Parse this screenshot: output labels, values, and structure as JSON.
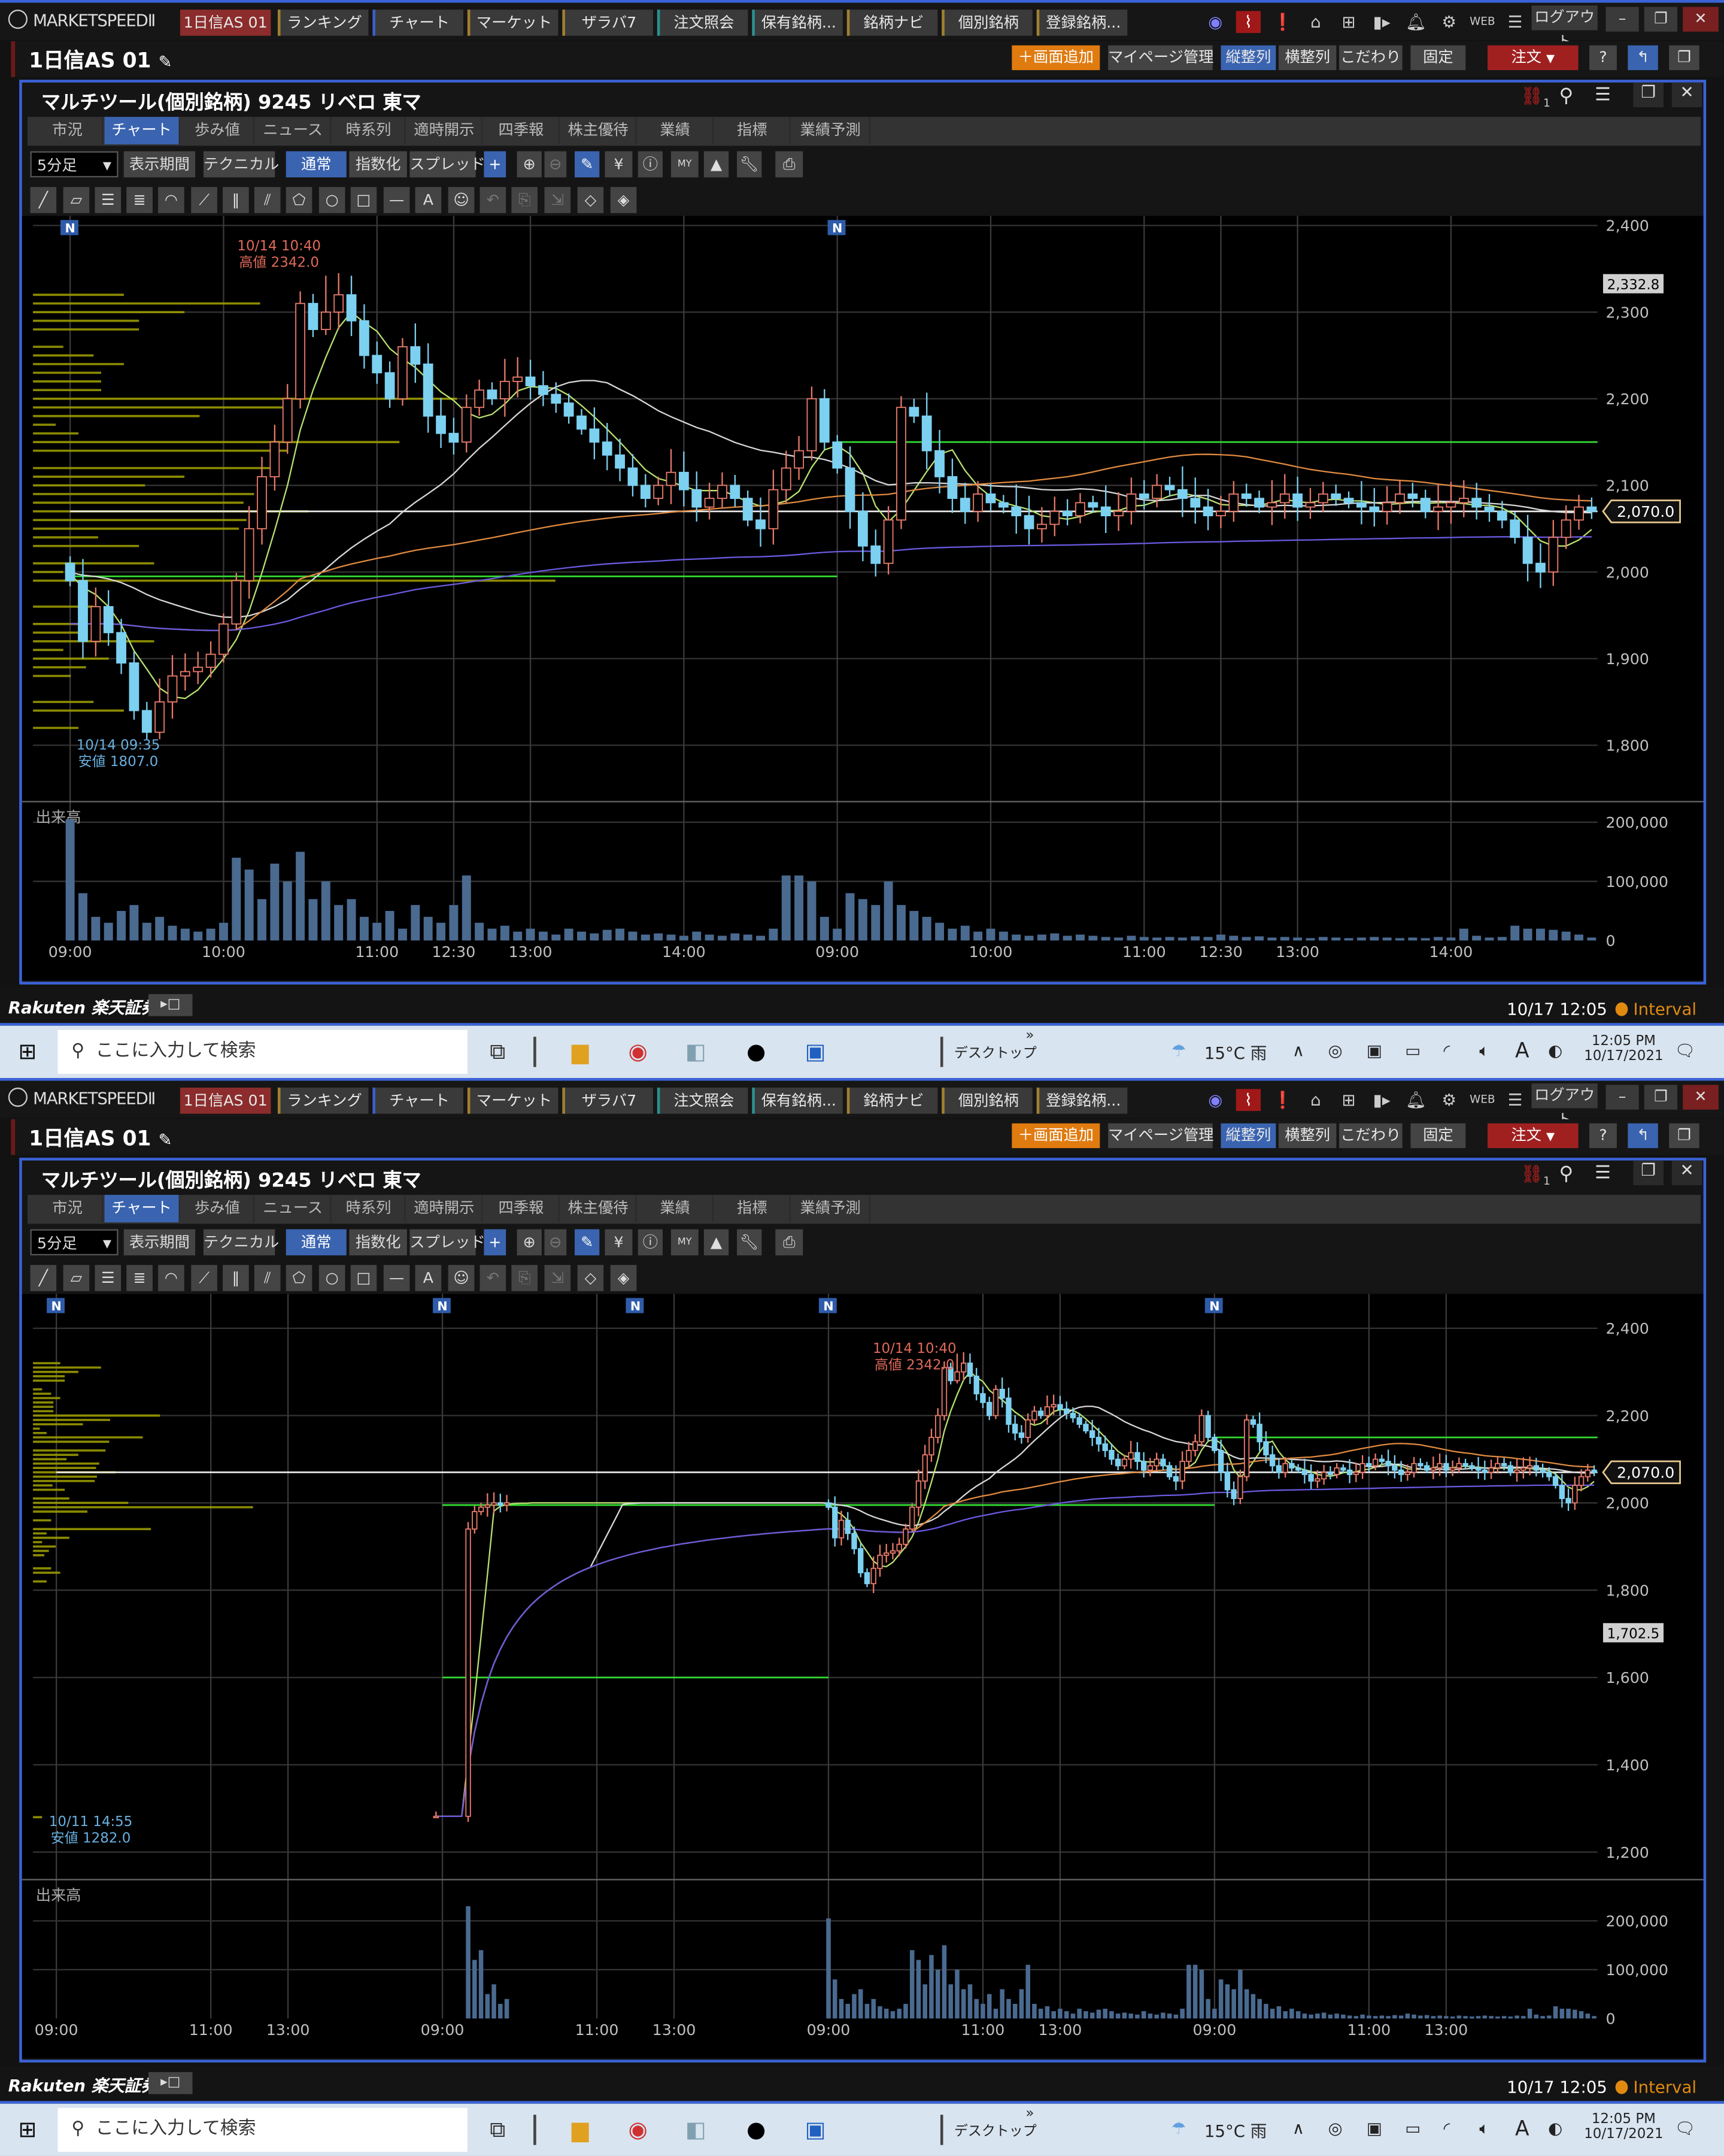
{
  "app": {
    "logo": "MARKETSPEEDⅡ",
    "global_tabs": [
      {
        "label": "1日信AS 01",
        "color": "#8c2c2c"
      },
      {
        "label": "ランキング",
        "color": "#a08030"
      },
      {
        "label": "チャート",
        "color": "#3a5fc8"
      },
      {
        "label": "マーケット",
        "color": "#a08030"
      },
      {
        "label": "ザラバ7",
        "color": "#a08030"
      },
      {
        "label": "注文照会",
        "color": "#2a9090"
      },
      {
        "label": "保有銘柄...",
        "color": "#2a9090"
      },
      {
        "label": "銘柄ナビ",
        "color": "#a08030"
      },
      {
        "label": "個別銘柄",
        "color": "#a08030"
      },
      {
        "label": "登録銘柄...",
        "color": "#a08030"
      }
    ],
    "logout": "ログアウト",
    "workspace_name": "1日信AS 01",
    "sub_buttons": {
      "add_screen": "＋画面追加",
      "mypage": "マイページ管理",
      "vertical": "縦整列",
      "horizontal": "横整列",
      "kodawari": "こだわり",
      "fixed": "固定",
      "order": "注文",
      "help": "?"
    },
    "panel_title": "マルチツール(個別銘柄) 9245 リベロ 東マ",
    "link_badge": "1",
    "content_tabs": [
      "市況",
      "チャート",
      "歩み値",
      "ニュース",
      "時系列",
      "適時開示",
      "四季報",
      "株主優待",
      "業績",
      "指標",
      "業績予測"
    ],
    "active_tab": "チャート",
    "toolbar": {
      "interval": "5分足",
      "period": "表示期間",
      "technical": "テクニカル",
      "normal": "通常",
      "indexed": "指数化",
      "spread": "スプレッド"
    },
    "status": {
      "brand": "Rakuten 楽天証券",
      "datetime": "10/17 12:05",
      "mode": "Interval",
      "mode_color": "#e08a10"
    },
    "taskbar": {
      "search_placeholder": "ここに入力して検索",
      "desktop": "デスクトップ",
      "weather": "15°C 雨",
      "ime": "A",
      "time": "12:05 PM",
      "date": "10/17/2021"
    },
    "colors": {
      "accent": "#3b62d6",
      "up_candle": "#e87a6a",
      "down_candle": "#7cd0f0",
      "volume": "#4a6a90",
      "ma_colors": [
        "#b8e070",
        "#d8d8d8",
        "#e08a40",
        "#6a5ae0"
      ],
      "profile": "#9a9a00"
    }
  },
  "chart_data": [
    {
      "type": "candlestick",
      "interval": "5分足",
      "y_ticks": [
        {
          "value": 2400,
          "label": "2,400"
        },
        {
          "value": 2300,
          "label": "2,300"
        },
        {
          "value": 2200,
          "label": "2,200"
        },
        {
          "value": 2100,
          "label": "2,100"
        },
        {
          "value": 2000,
          "label": "2,000"
        },
        {
          "value": 1900,
          "label": "1,900"
        },
        {
          "value": 1800,
          "label": "1,800"
        }
      ],
      "x_ticks": [
        {
          "bar": 0,
          "label": "09:00"
        },
        {
          "bar": 12,
          "label": "10:00"
        },
        {
          "bar": 24,
          "label": "11:00"
        },
        {
          "bar": 30,
          "label": "12:30"
        },
        {
          "bar": 36,
          "label": "13:00"
        },
        {
          "bar": 48,
          "label": "14:00"
        },
        {
          "bar": 60,
          "label": "09:00"
        },
        {
          "bar": 72,
          "label": "10:00"
        },
        {
          "bar": 84,
          "label": "11:00"
        },
        {
          "bar": 90,
          "label": "12:30"
        },
        {
          "bar": 96,
          "label": "13:00"
        },
        {
          "bar": 108,
          "label": "14:00"
        }
      ],
      "volume_label": "出来高",
      "volume_ticks": [
        {
          "value": 200000,
          "label": "200,000"
        },
        {
          "value": 100000,
          "label": "100,000"
        },
        {
          "value": 0,
          "label": "0"
        }
      ],
      "news_marker_bars": [
        0,
        60
      ],
      "news_marker_label": "N",
      "first_open": 2010,
      "days": [
        {
          "start": 0,
          "closes": [
            1990,
            1920,
            1960,
            1930,
            1895,
            1840,
            1815,
            1850,
            1880,
            1885,
            1890,
            1905,
            1940,
            1990,
            2050,
            2110,
            2150,
            2200,
            2310,
            2280,
            2300,
            2320,
            2290,
            2250,
            2230,
            2200,
            2260,
            2240,
            2180,
            2160,
            2150,
            2190,
            2210,
            2200,
            2220,
            2225,
            2215,
            2205,
            2195,
            2180,
            2165,
            2150,
            2135,
            2120,
            2100,
            2085,
            2100,
            2115,
            2095,
            2075,
            2085,
            2100,
            2085,
            2060,
            2050,
            2095,
            2120,
            2140,
            2200,
            2150
          ],
          "volumes": [
            205000,
            80000,
            40000,
            30000,
            50000,
            60000,
            30000,
            40000,
            25000,
            20000,
            15000,
            20000,
            30000,
            140000,
            120000,
            70000,
            130000,
            100000,
            150000,
            70000,
            100000,
            60000,
            70000,
            40000,
            30000,
            50000,
            20000,
            60000,
            40000,
            30000,
            60000,
            110000,
            30000,
            20000,
            25000,
            15000,
            20000,
            15000,
            10000,
            20000,
            15000,
            12000,
            18000,
            20000,
            15000,
            10000,
            12000,
            10000,
            8000,
            15000,
            10000,
            8000,
            12000,
            10000,
            8000,
            20000,
            110000,
            110000,
            100000,
            40000
          ]
        },
        {
          "start": 0,
          "closes": [
            2120,
            2070,
            2030,
            2010,
            2060,
            2190,
            2180,
            2140,
            2110,
            2085,
            2070,
            2090,
            2080,
            2075,
            2065,
            2050,
            2055,
            2070,
            2065,
            2080,
            2075,
            2065,
            2070,
            2090,
            2085,
            2100,
            2095,
            2085,
            2075,
            2065,
            2070,
            2090,
            2085,
            2075,
            2080,
            2090,
            2075,
            2080,
            2090,
            2085,
            2080,
            2075,
            2070,
            2080,
            2090,
            2085,
            2070,
            2075,
            2080,
            2085,
            2075,
            2070,
            2060,
            2040,
            2010,
            2000,
            2040,
            2060,
            2075,
            2070
          ],
          "volumes": [
            20000,
            80000,
            70000,
            60000,
            100000,
            60000,
            50000,
            40000,
            30000,
            20000,
            25000,
            15000,
            20000,
            15000,
            10000,
            8000,
            10000,
            12000,
            8000,
            10000,
            8000,
            6000,
            5000,
            8000,
            6000,
            5000,
            6000,
            5000,
            7000,
            6000,
            10000,
            8000,
            6000,
            7000,
            5000,
            6000,
            5000,
            4000,
            6000,
            5000,
            4000,
            5000,
            6000,
            5000,
            4000,
            5000,
            4000,
            6000,
            5000,
            20000,
            8000,
            5000,
            6000,
            25000,
            20000,
            20000,
            18000,
            15000,
            10000,
            5000
          ]
        }
      ],
      "levels": [
        {
          "price": 2150,
          "from_bar": 60,
          "to_bar": 120,
          "color": "#33dd33"
        },
        {
          "price": 1995,
          "from_bar": 0,
          "to_bar": 60,
          "color": "#33dd33"
        },
        {
          "price": 2070,
          "from_bar": 0,
          "to_bar": 120,
          "color": "#e8e8e8"
        }
      ],
      "high": {
        "bar": 20,
        "price": 2342.0,
        "time": "10/14 10:40",
        "label": "高値 2342.0"
      },
      "low": {
        "bar": 7,
        "price": 1807.0,
        "time": "10/14 09:35",
        "label": "安値 1807.0"
      },
      "price_tags": [
        {
          "value": 2332.8,
          "label": "2,332.8",
          "style": "marker"
        },
        {
          "value": 2070.0,
          "label": "2,070.0",
          "style": "current"
        }
      ]
    },
    {
      "type": "candlestick",
      "interval": "5分足",
      "y_ticks": [
        {
          "value": 2400,
          "label": "2,400"
        },
        {
          "value": 2200,
          "label": "2,200"
        },
        {
          "value": 2000,
          "label": "2,000"
        },
        {
          "value": 1800,
          "label": "1,800"
        },
        {
          "value": 1600,
          "label": "1,600"
        },
        {
          "value": 1400,
          "label": "1,400"
        },
        {
          "value": 1200,
          "label": "1,200"
        }
      ],
      "x_ticks": [
        {
          "bar": 0,
          "label": "09:00"
        },
        {
          "bar": 24,
          "label": "11:00"
        },
        {
          "bar": 36,
          "label": "13:00"
        },
        {
          "bar": 60,
          "label": "09:00"
        },
        {
          "bar": 84,
          "label": "11:00"
        },
        {
          "bar": 96,
          "label": "13:00"
        },
        {
          "bar": 120,
          "label": "09:00"
        },
        {
          "bar": 144,
          "label": "11:00"
        },
        {
          "bar": 156,
          "label": "13:00"
        },
        {
          "bar": 180,
          "label": "09:00"
        },
        {
          "bar": 204,
          "label": "11:00"
        },
        {
          "bar": 216,
          "label": "13:00"
        }
      ],
      "volume_label": "出来高",
      "volume_ticks": [
        {
          "value": 200000,
          "label": "200,000"
        },
        {
          "value": 100000,
          "label": "100,000"
        },
        {
          "value": 0,
          "label": "0"
        }
      ],
      "news_marker_bars": [
        0,
        60,
        90,
        120,
        180
      ],
      "news_marker_label": "N",
      "first_open": 1282,
      "days": [
        {
          "start": 59,
          "closes": [
            1282
          ],
          "volumes": [
            0
          ]
        },
        {
          "start": 4,
          "closes": [
            1940,
            1980,
            1990,
            1995,
            2000,
            1995,
            2000
          ],
          "volumes": [
            230000,
            120000,
            140000,
            50000,
            70000,
            30000,
            40000
          ]
        },
        {
          "start": 0,
          "closes": [
            1990,
            1920,
            1960,
            1930,
            1895,
            1840,
            1815,
            1850,
            1880,
            1885,
            1890,
            1905,
            1940,
            1990,
            2050,
            2110,
            2150,
            2200,
            2310,
            2280,
            2300,
            2320,
            2290,
            2250,
            2230,
            2200,
            2260,
            2240,
            2180,
            2160,
            2150,
            2190,
            2210,
            2200,
            2220,
            2225,
            2215,
            2205,
            2195,
            2180,
            2165,
            2150,
            2135,
            2120,
            2100,
            2085,
            2100,
            2115,
            2095,
            2075,
            2085,
            2100,
            2085,
            2060,
            2050,
            2095,
            2120,
            2140,
            2200,
            2150
          ],
          "volumes": [
            205000,
            80000,
            40000,
            30000,
            50000,
            60000,
            30000,
            40000,
            25000,
            20000,
            15000,
            20000,
            30000,
            140000,
            120000,
            70000,
            130000,
            100000,
            150000,
            70000,
            100000,
            60000,
            70000,
            40000,
            30000,
            50000,
            20000,
            60000,
            40000,
            30000,
            60000,
            110000,
            30000,
            20000,
            25000,
            15000,
            20000,
            15000,
            10000,
            20000,
            15000,
            12000,
            18000,
            20000,
            15000,
            10000,
            12000,
            10000,
            8000,
            15000,
            10000,
            8000,
            12000,
            10000,
            8000,
            20000,
            110000,
            110000,
            100000,
            40000
          ]
        },
        {
          "start": 0,
          "closes": [
            2120,
            2070,
            2030,
            2010,
            2060,
            2190,
            2180,
            2140,
            2110,
            2085,
            2070,
            2090,
            2080,
            2075,
            2065,
            2050,
            2055,
            2070,
            2065,
            2080,
            2075,
            2065,
            2070,
            2090,
            2085,
            2100,
            2095,
            2085,
            2075,
            2065,
            2070,
            2090,
            2085,
            2075,
            2080,
            2090,
            2075,
            2080,
            2090,
            2085,
            2080,
            2075,
            2070,
            2080,
            2090,
            2085,
            2070,
            2075,
            2080,
            2085,
            2075,
            2070,
            2060,
            2040,
            2010,
            2000,
            2040,
            2060,
            2075,
            2070
          ],
          "volumes": [
            20000,
            80000,
            70000,
            60000,
            100000,
            60000,
            50000,
            40000,
            30000,
            20000,
            25000,
            15000,
            20000,
            15000,
            10000,
            8000,
            10000,
            12000,
            8000,
            10000,
            8000,
            6000,
            5000,
            8000,
            6000,
            5000,
            6000,
            5000,
            7000,
            6000,
            10000,
            8000,
            6000,
            7000,
            5000,
            6000,
            5000,
            4000,
            6000,
            5000,
            4000,
            5000,
            6000,
            5000,
            4000,
            5000,
            4000,
            6000,
            5000,
            20000,
            8000,
            5000,
            6000,
            25000,
            20000,
            20000,
            18000,
            15000,
            10000,
            5000
          ]
        }
      ],
      "levels": [
        {
          "price": 2150,
          "from_bar": 180,
          "to_bar": 240,
          "color": "#33dd33"
        },
        {
          "price": 1995,
          "from_bar": 60,
          "to_bar": 180,
          "color": "#33dd33"
        },
        {
          "price": 1600,
          "from_bar": 60,
          "to_bar": 120,
          "color": "#33dd33"
        },
        {
          "price": 2070,
          "from_bar": 0,
          "to_bar": 240,
          "color": "#e8e8e8"
        }
      ],
      "high": {
        "bar": 140,
        "price": 2342.0,
        "time": "10/14 10:40",
        "label": "高値 2342.0"
      },
      "low": {
        "bar": 59,
        "price": 1282.0,
        "time": "10/11 14:55",
        "label": "安値 1282.0"
      },
      "price_tags": [
        {
          "value": 2070.0,
          "label": "2,070.0",
          "style": "current"
        },
        {
          "value": 1702.5,
          "label": "1,702.5",
          "style": "marker"
        }
      ]
    }
  ]
}
